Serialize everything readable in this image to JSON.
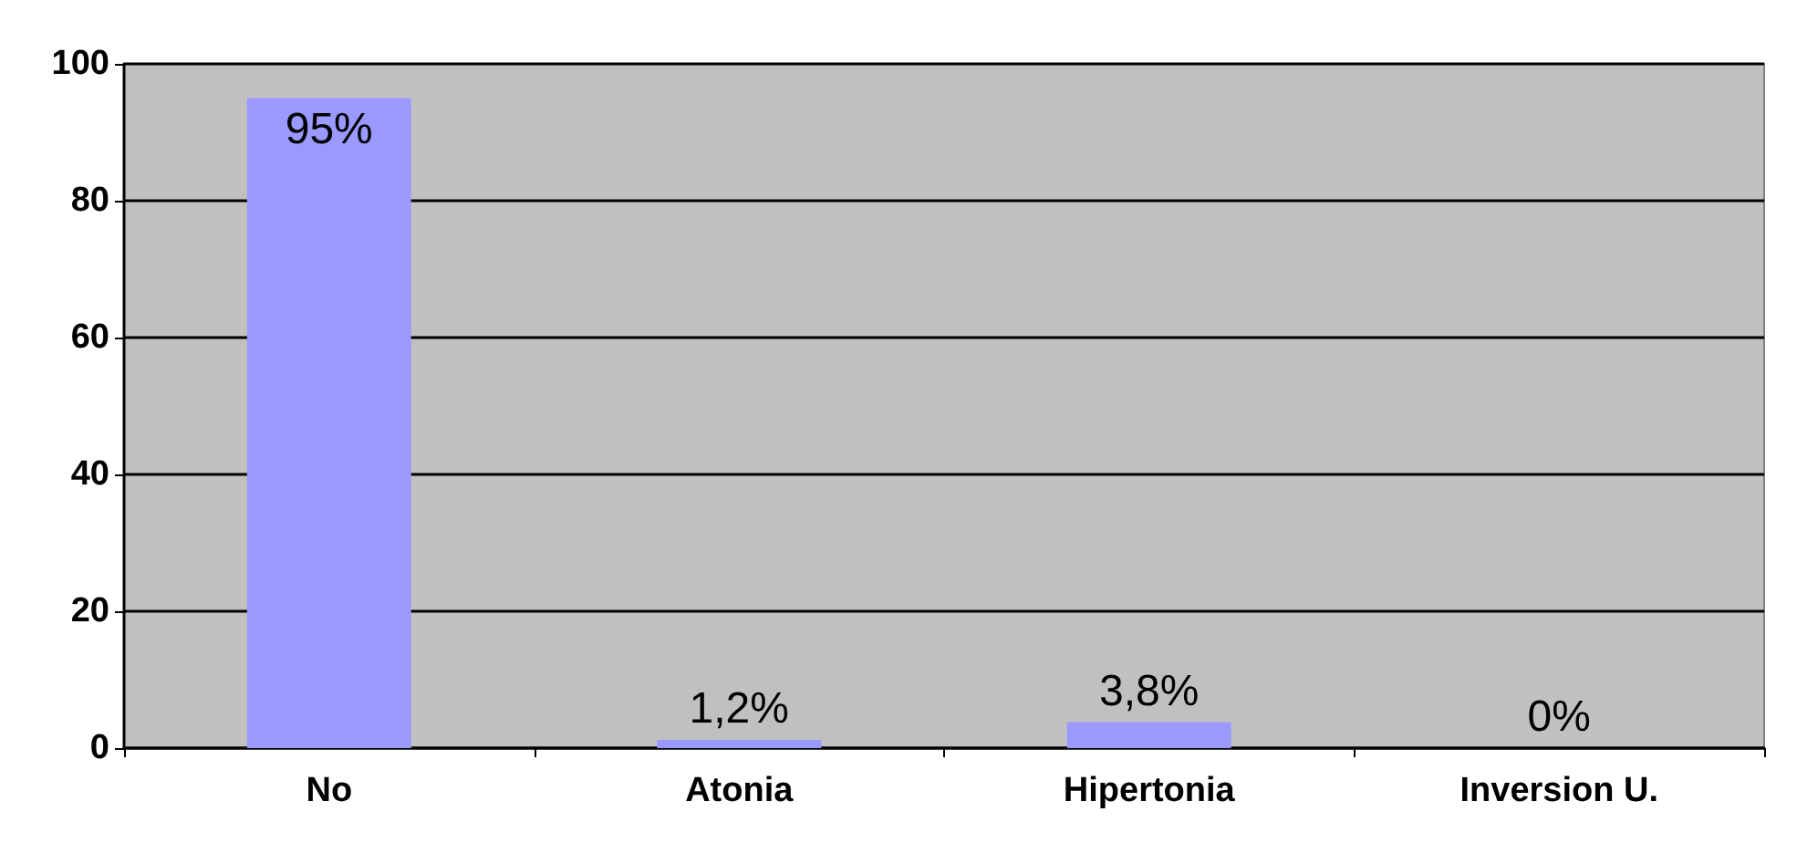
{
  "chart_data": {
    "type": "bar",
    "categories": [
      "No",
      "Atonia",
      "Hipertonia",
      "Inversion U."
    ],
    "values": [
      95,
      1.2,
      3.8,
      0
    ],
    "value_labels": [
      "95%",
      "1,2%",
      "3,8%",
      "0%"
    ],
    "color": "#9999ff",
    "ylim": [
      0,
      100
    ],
    "yticks": [
      0,
      20,
      40,
      60,
      80,
      100
    ],
    "grid": "y"
  }
}
